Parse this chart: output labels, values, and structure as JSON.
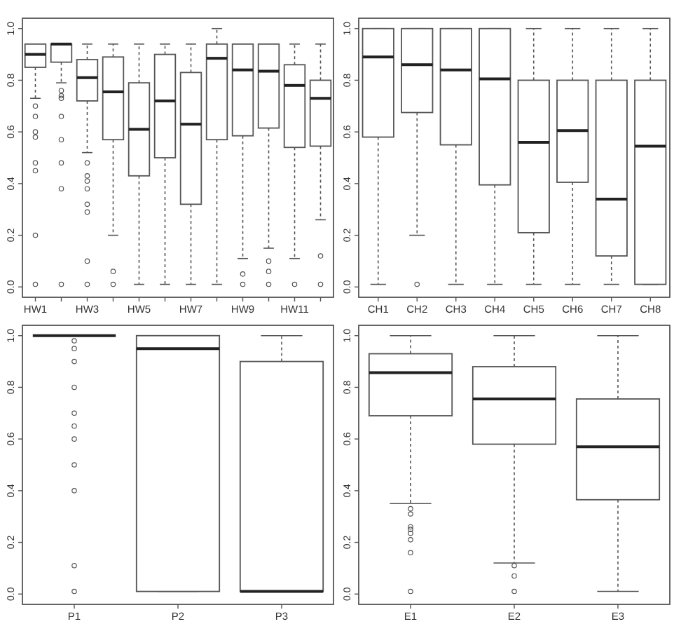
{
  "chart_data": [
    {
      "type": "box",
      "categories": [
        "HW1",
        null,
        "HW3",
        null,
        "HW5",
        null,
        "HW7",
        null,
        "HW9",
        null,
        "HW11",
        null
      ],
      "ylim": [
        -0.04,
        1.04
      ],
      "yticks": [
        {
          "value": 0,
          "label": "0.0"
        },
        {
          "value": 0.2,
          "label": "0.2"
        },
        {
          "value": 0.4,
          "label": "0.4"
        },
        {
          "value": 0.6,
          "label": "0.6"
        },
        {
          "value": 0.8,
          "label": "0.8"
        },
        {
          "value": 1,
          "label": "1.0"
        }
      ],
      "boxes": [
        {
          "low": 0.73,
          "q1": 0.85,
          "median": 0.9,
          "q3": 0.94,
          "high": 0.94,
          "outliers": [
            0.7,
            0.66,
            0.6,
            0.58,
            0.48,
            0.45,
            0.2,
            0.01
          ]
        },
        {
          "low": 0.79,
          "q1": 0.87,
          "median": 0.94,
          "q3": 0.94,
          "high": 0.94,
          "outliers": [
            0.76,
            0.74,
            0.73,
            0.66,
            0.57,
            0.48,
            0.38,
            0.01
          ]
        },
        {
          "low": 0.52,
          "q1": 0.72,
          "median": 0.81,
          "q3": 0.88,
          "high": 0.94,
          "outliers": [
            0.48,
            0.43,
            0.41,
            0.38,
            0.32,
            0.29,
            0.1,
            0.01
          ]
        },
        {
          "low": 0.2,
          "q1": 0.57,
          "median": 0.755,
          "q3": 0.89,
          "high": 0.94,
          "outliers": [
            0.06,
            0.01
          ]
        },
        {
          "low": 0.01,
          "q1": 0.43,
          "median": 0.61,
          "q3": 0.79,
          "high": 0.94
        },
        {
          "low": 0.01,
          "q1": 0.5,
          "median": 0.72,
          "q3": 0.9,
          "high": 0.94
        },
        {
          "low": 0.01,
          "q1": 0.32,
          "median": 0.63,
          "q3": 0.83,
          "high": 0.94
        },
        {
          "low": 0.01,
          "q1": 0.57,
          "median": 0.885,
          "q3": 0.94,
          "high": 1.0
        },
        {
          "low": 0.11,
          "q1": 0.585,
          "median": 0.84,
          "q3": 0.94,
          "high": 0.94,
          "outliers": [
            0.05,
            0.01
          ]
        },
        {
          "low": 0.15,
          "q1": 0.615,
          "median": 0.835,
          "q3": 0.94,
          "high": 0.94,
          "outliers": [
            0.1,
            0.06,
            0.01
          ]
        },
        {
          "low": 0.11,
          "q1": 0.54,
          "median": 0.78,
          "q3": 0.86,
          "high": 0.94,
          "outliers": [
            0.01
          ]
        },
        {
          "low": 0.26,
          "q1": 0.545,
          "median": 0.73,
          "q3": 0.8,
          "high": 0.94,
          "outliers": [
            0.12,
            0.01
          ]
        }
      ]
    },
    {
      "type": "box",
      "categories": [
        "CH1",
        "CH2",
        "CH3",
        "CH4",
        "CH5",
        "CH6",
        "CH7",
        "CH8"
      ],
      "ylim": [
        -0.04,
        1.04
      ],
      "yticks": [
        {
          "value": 0,
          "label": "0.0"
        },
        {
          "value": 0.2,
          "label": "0.2"
        },
        {
          "value": 0.4,
          "label": "0.4"
        },
        {
          "value": 0.6,
          "label": "0.6"
        },
        {
          "value": 0.8,
          "label": "0.8"
        },
        {
          "value": 1,
          "label": "1.0"
        }
      ],
      "boxes": [
        {
          "low": 0.01,
          "q1": 0.58,
          "median": 0.89,
          "q3": 1.0,
          "high": 1.0
        },
        {
          "low": 0.2,
          "q1": 0.675,
          "median": 0.86,
          "q3": 1.0,
          "high": 1.0,
          "outliers": [
            0.01
          ]
        },
        {
          "low": 0.01,
          "q1": 0.55,
          "median": 0.84,
          "q3": 1.0,
          "high": 1.0
        },
        {
          "low": 0.01,
          "q1": 0.395,
          "median": 0.805,
          "q3": 1.0,
          "high": 1.0
        },
        {
          "low": 0.01,
          "q1": 0.21,
          "median": 0.56,
          "q3": 0.8,
          "high": 1.0
        },
        {
          "low": 0.01,
          "q1": 0.405,
          "median": 0.605,
          "q3": 0.8,
          "high": 1.0
        },
        {
          "low": 0.01,
          "q1": 0.12,
          "median": 0.34,
          "q3": 0.8,
          "high": 1.0
        },
        {
          "low": 0.01,
          "q1": 0.01,
          "median": 0.545,
          "q3": 0.8,
          "high": 1.0
        }
      ]
    },
    {
      "type": "box",
      "categories": [
        "P1",
        "P2",
        "P3"
      ],
      "ylim": [
        -0.04,
        1.04
      ],
      "yticks": [
        {
          "value": 0,
          "label": "0.0"
        },
        {
          "value": 0.2,
          "label": "0.2"
        },
        {
          "value": 0.4,
          "label": "0.4"
        },
        {
          "value": 0.6,
          "label": "0.6"
        },
        {
          "value": 0.8,
          "label": "0.8"
        },
        {
          "value": 1,
          "label": "1.0"
        }
      ],
      "boxes": [
        {
          "low": 1.0,
          "q1": 1.0,
          "median": 1.0,
          "q3": 1.0,
          "high": 1.0,
          "outliers": [
            0.98,
            0.95,
            0.9,
            0.8,
            0.7,
            0.65,
            0.6,
            0.5,
            0.4,
            0.11,
            0.01
          ]
        },
        {
          "low": 0.01,
          "q1": 0.01,
          "median": 0.95,
          "q3": 1.0,
          "high": 1.0
        },
        {
          "low": 0.01,
          "q1": 0.01,
          "median": 0.01,
          "q3": 0.9,
          "high": 1.0
        }
      ]
    },
    {
      "type": "box",
      "categories": [
        "E1",
        "E2",
        "E3"
      ],
      "ylim": [
        -0.04,
        1.04
      ],
      "yticks": [
        {
          "value": 0,
          "label": "0.0"
        },
        {
          "value": 0.2,
          "label": "0.2"
        },
        {
          "value": 0.4,
          "label": "0.4"
        },
        {
          "value": 0.6,
          "label": "0.6"
        },
        {
          "value": 0.8,
          "label": "0.8"
        },
        {
          "value": 1,
          "label": "1.0"
        }
      ],
      "boxes": [
        {
          "low": 0.35,
          "q1": 0.69,
          "median": 0.857,
          "q3": 0.93,
          "high": 1.0,
          "outliers": [
            0.33,
            0.31,
            0.26,
            0.25,
            0.235,
            0.21,
            0.16,
            0.01
          ]
        },
        {
          "low": 0.12,
          "q1": 0.58,
          "median": 0.755,
          "q3": 0.88,
          "high": 1.0,
          "outliers": [
            0.11,
            0.07,
            0.01
          ]
        },
        {
          "low": 0.01,
          "q1": 0.365,
          "median": 0.57,
          "q3": 0.755,
          "high": 1.0
        }
      ]
    }
  ]
}
